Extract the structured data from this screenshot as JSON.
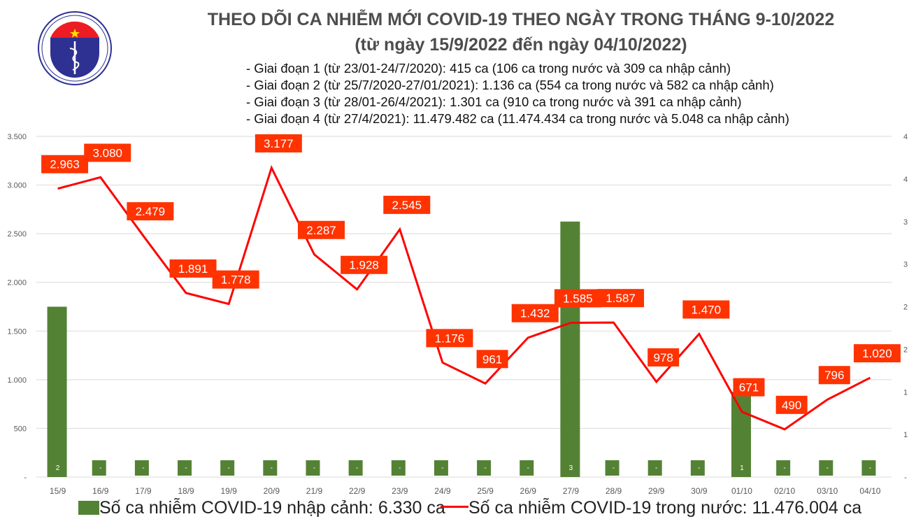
{
  "header": {
    "title": "THEO DÕI CA NHIỄM MỚI COVID-19 THEO NGÀY TRONG THÁNG 9-10/2022",
    "subtitle": "(từ ngày 15/9/2022 đến ngày 04/10/2022)",
    "notes": [
      "- Giai đoạn 1 (từ 23/01-24/7/2020): 415 ca (106 ca trong nước và 309 ca nhập cảnh)",
      "- Giai đoạn 2 (từ 25/7/2020-27/01/2021): 1.136 ca (554 ca trong nước và 582 ca nhập cảnh)",
      "- Giai đoạn 3 (từ 28/01-26/4/2021): 1.301 ca (910 ca trong nước và 391 ca nhập cảnh)",
      "- Giai đoạn 4 (từ 27/4/2021): 11.479.482 ca (11.474.434 ca trong nước và 5.048 ca nhập cảnh)"
    ]
  },
  "logo": {
    "top_text": "BỘ Y TẾ",
    "bottom_text": "MINISTRY OF HEALTH"
  },
  "chart_data": {
    "type": "bar+line",
    "categories": [
      "15/9",
      "16/9",
      "17/9",
      "18/9",
      "19/9",
      "20/9",
      "21/9",
      "22/9",
      "23/9",
      "24/9",
      "25/9",
      "26/9",
      "27/9",
      "28/9",
      "29/9",
      "30/9",
      "01/10",
      "02/10",
      "03/10",
      "04/10"
    ],
    "series": [
      {
        "name": "Số ca nhiễm COVID-19 nhập cảnh: 6.330 ca",
        "type": "bar",
        "axis": "right",
        "color": "#548235",
        "values": [
          2,
          0,
          0,
          0,
          0,
          0,
          0,
          0,
          0,
          0,
          0,
          0,
          3,
          0,
          0,
          0,
          1,
          0,
          0,
          0
        ],
        "labels": [
          "2",
          "-",
          "-",
          "-",
          "-",
          "-",
          "-",
          "-",
          "-",
          "-",
          "-",
          "-",
          "3",
          "-",
          "-",
          "-",
          "1",
          "-",
          "-",
          "-"
        ]
      },
      {
        "name": "Số ca nhiễm COVID-19 trong nước: 11.476.004 ca",
        "type": "line",
        "axis": "left",
        "color": "#ff0000",
        "label_bg": "#ff3300",
        "values": [
          2963,
          3080,
          2479,
          1891,
          1778,
          3177,
          2287,
          1928,
          2545,
          1176,
          961,
          1432,
          1585,
          1587,
          978,
          1470,
          671,
          490,
          796,
          1020
        ],
        "labels": [
          "2.963",
          "3.080",
          "2.479",
          "1.891",
          "1.778",
          "3.177",
          "2.287",
          "1.928",
          "2.545",
          "1.176",
          "961",
          "1.432",
          "1.585",
          "1.587",
          "978",
          "1.470",
          "671",
          "490",
          "796",
          "1.020"
        ]
      }
    ],
    "ylim": [
      0,
      3500
    ],
    "y_ticks": [
      "-",
      "500",
      "1.000",
      "1.500",
      "2.000",
      "2.500",
      "3.000",
      "3.500"
    ],
    "y2lim": [
      0,
      4
    ],
    "y2_ticks": [
      "-",
      "1",
      "1",
      "2",
      "2",
      "3",
      "3",
      "4",
      "4"
    ],
    "grid": true,
    "legend": "bottom"
  }
}
